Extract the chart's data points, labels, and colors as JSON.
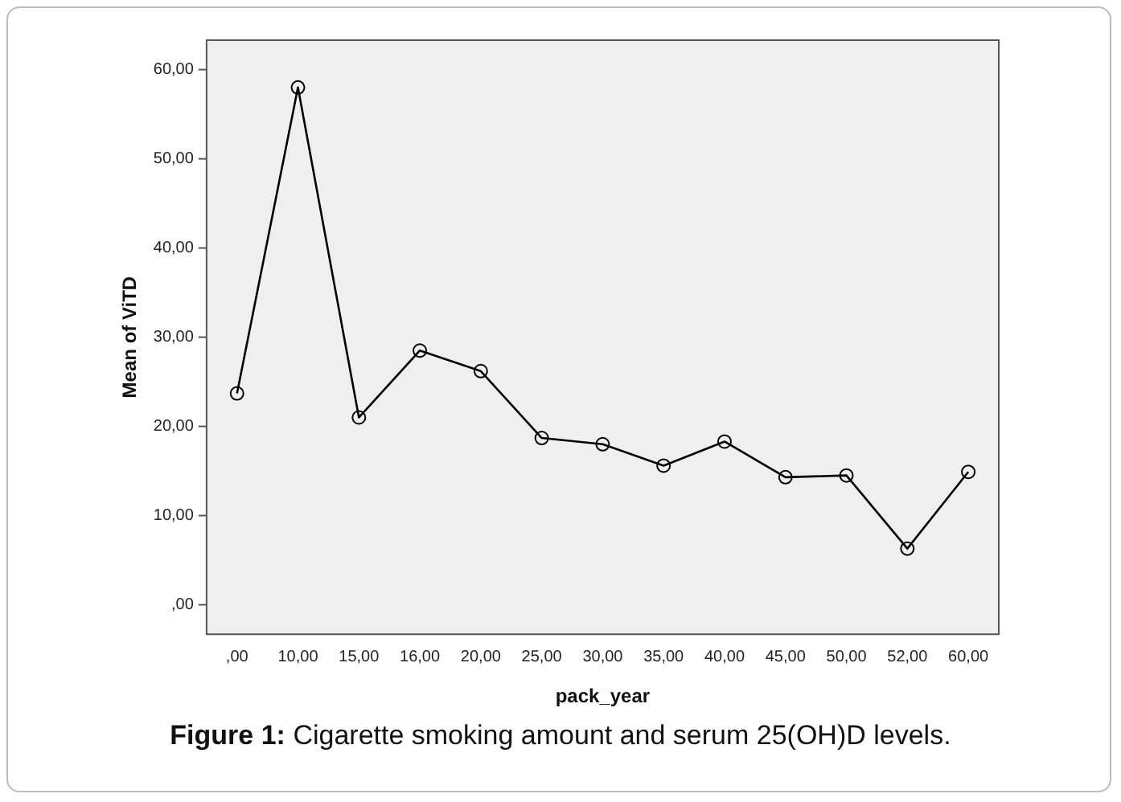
{
  "chart_data": {
    "type": "line",
    "xlabel": "pack_year",
    "ylabel": "Mean of ViTD",
    "categories": [
      ",00",
      "10,00",
      "15,00",
      "16,00",
      "20,00",
      "25,00",
      "30,00",
      "35,00",
      "40,00",
      "45,00",
      "50,00",
      "52,00",
      "60,00"
    ],
    "series": [
      {
        "color": "#000000",
        "values": [
          23.7,
          58.0,
          21.0,
          28.5,
          26.2,
          18.7,
          18.0,
          15.6,
          18.3,
          14.3,
          14.5,
          6.3,
          14.9
        ]
      }
    ],
    "ylim": [
      -3.3,
      63.3
    ],
    "yticks": [
      {
        "value": 0,
        "label": ",00"
      },
      {
        "value": 10,
        "label": "10,00"
      },
      {
        "value": 20,
        "label": "20,00"
      },
      {
        "value": 30,
        "label": "30,00"
      },
      {
        "value": 40,
        "label": "40,00"
      },
      {
        "value": 50,
        "label": "50,00"
      },
      {
        "value": 60,
        "label": "60,00"
      }
    ],
    "grid": false,
    "legend": false,
    "marker": "circle",
    "line_style": "solid",
    "annotations": [
      "Figure 1: Cigarette smoking amount and serum 25(OH)D levels."
    ]
  }
}
